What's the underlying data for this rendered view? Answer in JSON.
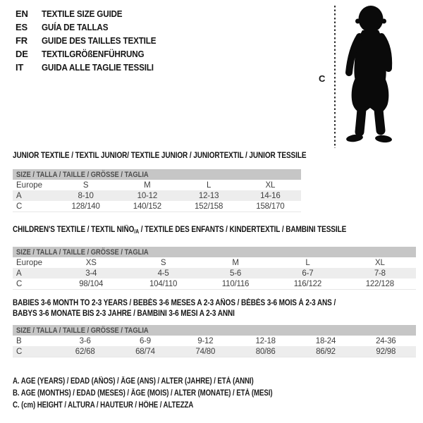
{
  "languages": [
    {
      "code": "EN",
      "label": "TEXTILE SIZE GUIDE"
    },
    {
      "code": "ES",
      "label": "GUÍA DE TALLAS"
    },
    {
      "code": "FR",
      "label": "GUIDE DES TAILLES TEXTILE"
    },
    {
      "code": "DE",
      "label": "TEXTILGRÖßENFÜHRUNG"
    },
    {
      "code": "IT",
      "label": "GUIDA ALLE TAGLIE TESSILI"
    }
  ],
  "figure": {
    "height_label": "C"
  },
  "colors": {
    "header_bar": "#c6c6c6",
    "row_shaded": "#ededed",
    "silhouette": "#0a0a0a"
  },
  "sections": [
    {
      "title": "JUNIOR TEXTILE / TEXTIL JUNIOR/ TEXTILE JUNIOR / JUNIORTEXTIL / JUNIOR TESSILE",
      "size_header": "SIZE / TALLA / TAILLE / GRÖSSE / TAGLIA",
      "rows": [
        [
          "Europe",
          "S",
          "M",
          "L",
          "XL"
        ],
        [
          "A",
          "8-10",
          "10-12",
          "12-13",
          "14-16"
        ],
        [
          "C",
          "128/140",
          "140/152",
          "152/158",
          "158/170"
        ]
      ]
    },
    {
      "title_pre": "CHILDREN'S TEXTILE / TEXTIL NIÑO",
      "title_sub": "/A",
      "title_post": " / TEXTILE DES ENFANTS / KINDERTEXTIL / BAMBINI TESSILE",
      "size_header": "SIZE / TALLA / TAILLE / GRÖSSE / TAGLIA",
      "rows": [
        [
          "Europe",
          "XS",
          "S",
          "M",
          "L",
          "XL"
        ],
        [
          "A",
          "3-4",
          "4-5",
          "5-6",
          "6-7",
          "7-8"
        ],
        [
          "C",
          "98/104",
          "104/110",
          "110/116",
          "116/122",
          "122/128"
        ]
      ]
    },
    {
      "title_line1": "BABIES 3-6 MONTH TO 2-3 YEARS / BEBÉS 3-6 MESES A 2-3 AÑOS / BÉBÉS 3-6 MOIS À 2-3 ANS /",
      "title_line2": "BABYS 3-6 MONATE BIS 2-3 JAHRE / BAMBINI 3-6 MESI A 2-3 ANNI",
      "size_header": "SIZE / TALLA / TAILLE / GRÖSSE / TAGLIA",
      "rows": [
        [
          "B",
          "3-6",
          "6-9",
          "9-12",
          "12-18",
          "18-24",
          "24-36"
        ],
        [
          "C",
          "62/68",
          "68/74",
          "74/80",
          "80/86",
          "86/92",
          "92/98"
        ]
      ]
    }
  ],
  "legend": [
    "A. AGE (YEARS) / EDAD (AÑOS) / ÂGE (ANS) / ALTER (JAHRE) / ETÀ (ANNI)",
    "B. AGE (MONTHS) / EDAD (MESES) / ÂGE (MOIS) / ALTER (MONATE) / ETÀ (MESI)",
    "C. (cm) HEIGHT / ALTURA / HAUTEUR / HÖHE / ALTEZZA"
  ]
}
